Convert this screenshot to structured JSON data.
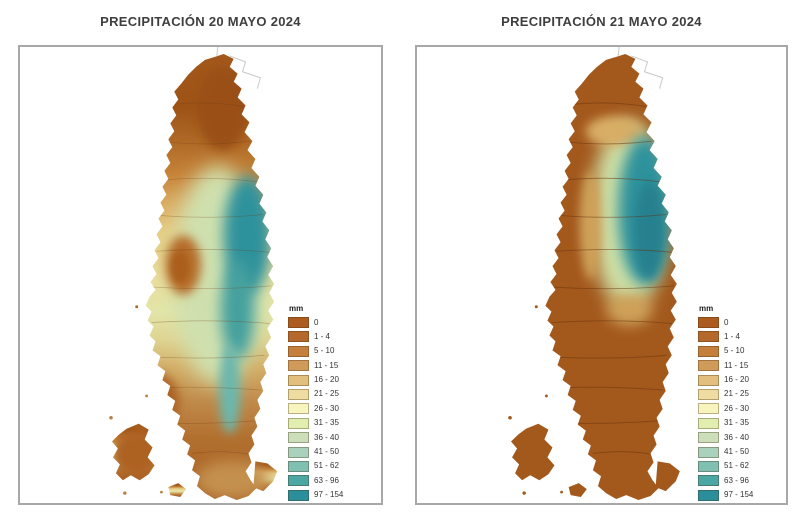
{
  "panels": [
    {
      "id": "left",
      "title": "PRECIPITACIÓN 20 MAYO 2024"
    },
    {
      "id": "right",
      "title": "PRECIPITACIÓN 21 MAYO 2024"
    }
  ],
  "legend": {
    "title": "mm",
    "entries": [
      {
        "label": "0",
        "color": "#ad5c20"
      },
      {
        "label": "1 - 4",
        "color": "#b4682a"
      },
      {
        "label": "5 - 10",
        "color": "#c47f3c"
      },
      {
        "label": "11 - 15",
        "color": "#d09a58"
      },
      {
        "label": "16 - 20",
        "color": "#e2bf7c"
      },
      {
        "label": "21 - 25",
        "color": "#eedca0"
      },
      {
        "label": "26 - 30",
        "color": "#f7f4bd"
      },
      {
        "label": "31 - 35",
        "color": "#e2eeb0"
      },
      {
        "label": "36 - 40",
        "color": "#cadfba"
      },
      {
        "label": "41 - 50",
        "color": "#a9d1bb"
      },
      {
        "label": "51 - 62",
        "color": "#7fc0b2"
      },
      {
        "label": "63 - 96",
        "color": "#4aa7a3"
      },
      {
        "label": "97 - 154",
        "color": "#2a8f9a"
      }
    ]
  }
}
